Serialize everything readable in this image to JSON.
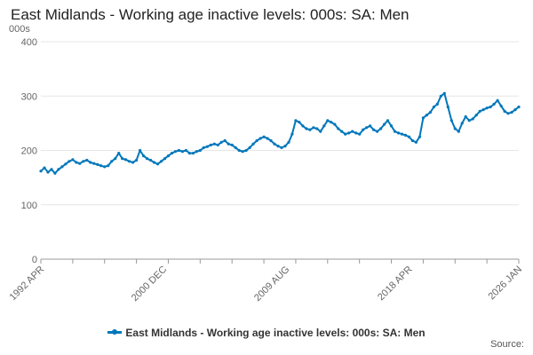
{
  "title": "East Midlands - Working age inactive levels: 000s: SA: Men",
  "source_label": "Source:",
  "colors": {
    "series": "#0077bb",
    "grid": "#e6e6e6",
    "axis": "#999999"
  },
  "chart_data": {
    "type": "line",
    "title": "East Midlands - Working age inactive levels: 000s: SA: Men",
    "ylabel": "000s",
    "ylim": [
      0,
      400
    ],
    "yticks": [
      0,
      100,
      200,
      300,
      400
    ],
    "grid": true,
    "legend_position": "bottom",
    "x_range": [
      "1992 APR",
      "2026 JAN"
    ],
    "xtick_labels": [
      "1992 APR",
      "2000 DEC",
      "2009 AUG",
      "2018 APR",
      "2026 JAN"
    ],
    "series": [
      {
        "name": "East Midlands - Working age inactive levels: 000s: SA: Men",
        "points": [
          [
            "1992 APR",
            162
          ],
          [
            "1992 JUL",
            168
          ],
          [
            "1992 OCT",
            160
          ],
          [
            "1993 JAN",
            165
          ],
          [
            "1993 APR",
            158
          ],
          [
            "1993 JUL",
            165
          ],
          [
            "1993 OCT",
            170
          ],
          [
            "1994 JAN",
            175
          ],
          [
            "1994 APR",
            180
          ],
          [
            "1994 JUL",
            183
          ],
          [
            "1994 OCT",
            178
          ],
          [
            "1995 JAN",
            176
          ],
          [
            "1995 APR",
            180
          ],
          [
            "1995 JUL",
            182
          ],
          [
            "1995 OCT",
            178
          ],
          [
            "1996 JAN",
            176
          ],
          [
            "1996 APR",
            174
          ],
          [
            "1996 JUL",
            172
          ],
          [
            "1996 OCT",
            170
          ],
          [
            "1997 JAN",
            172
          ],
          [
            "1997 APR",
            180
          ],
          [
            "1997 JUL",
            185
          ],
          [
            "1997 OCT",
            195
          ],
          [
            "1998 JAN",
            185
          ],
          [
            "1998 APR",
            183
          ],
          [
            "1998 JUL",
            180
          ],
          [
            "1998 OCT",
            178
          ],
          [
            "1999 JAN",
            182
          ],
          [
            "1999 APR",
            200
          ],
          [
            "1999 JUL",
            190
          ],
          [
            "1999 OCT",
            185
          ],
          [
            "2000 JAN",
            182
          ],
          [
            "2000 APR",
            178
          ],
          [
            "2000 JUL",
            175
          ],
          [
            "2000 OCT",
            180
          ],
          [
            "2001 JAN",
            185
          ],
          [
            "2001 APR",
            190
          ],
          [
            "2001 JUL",
            195
          ],
          [
            "2001 OCT",
            198
          ],
          [
            "2002 JAN",
            200
          ],
          [
            "2002 APR",
            198
          ],
          [
            "2002 JUL",
            200
          ],
          [
            "2002 OCT",
            195
          ],
          [
            "2003 JAN",
            195
          ],
          [
            "2003 APR",
            198
          ],
          [
            "2003 JUL",
            200
          ],
          [
            "2003 OCT",
            205
          ],
          [
            "2004 JAN",
            207
          ],
          [
            "2004 APR",
            210
          ],
          [
            "2004 JUL",
            212
          ],
          [
            "2004 OCT",
            210
          ],
          [
            "2005 JAN",
            215
          ],
          [
            "2005 APR",
            218
          ],
          [
            "2005 JUL",
            212
          ],
          [
            "2005 OCT",
            210
          ],
          [
            "2006 JAN",
            205
          ],
          [
            "2006 APR",
            200
          ],
          [
            "2006 JUL",
            198
          ],
          [
            "2006 OCT",
            200
          ],
          [
            "2007 JAN",
            205
          ],
          [
            "2007 APR",
            212
          ],
          [
            "2007 JUL",
            218
          ],
          [
            "2007 OCT",
            222
          ],
          [
            "2008 JAN",
            225
          ],
          [
            "2008 APR",
            222
          ],
          [
            "2008 JUL",
            218
          ],
          [
            "2008 OCT",
            212
          ],
          [
            "2009 JAN",
            208
          ],
          [
            "2009 APR",
            205
          ],
          [
            "2009 JUL",
            208
          ],
          [
            "2009 OCT",
            215
          ],
          [
            "2010 JAN",
            230
          ],
          [
            "2010 APR",
            255
          ],
          [
            "2010 JUL",
            252
          ],
          [
            "2010 OCT",
            245
          ],
          [
            "2011 JAN",
            240
          ],
          [
            "2011 APR",
            238
          ],
          [
            "2011 JUL",
            242
          ],
          [
            "2011 OCT",
            240
          ],
          [
            "2012 JAN",
            235
          ],
          [
            "2012 APR",
            245
          ],
          [
            "2012 JUL",
            255
          ],
          [
            "2012 OCT",
            252
          ],
          [
            "2013 JAN",
            248
          ],
          [
            "2013 APR",
            240
          ],
          [
            "2013 JUL",
            235
          ],
          [
            "2013 OCT",
            230
          ],
          [
            "2014 JAN",
            232
          ],
          [
            "2014 APR",
            235
          ],
          [
            "2014 JUL",
            232
          ],
          [
            "2014 OCT",
            230
          ],
          [
            "2015 JAN",
            238
          ],
          [
            "2015 APR",
            242
          ],
          [
            "2015 JUL",
            245
          ],
          [
            "2015 OCT",
            238
          ],
          [
            "2016 JAN",
            235
          ],
          [
            "2016 APR",
            240
          ],
          [
            "2016 JUL",
            248
          ],
          [
            "2016 OCT",
            255
          ],
          [
            "2017 JAN",
            245
          ],
          [
            "2017 APR",
            235
          ],
          [
            "2017 JUL",
            232
          ],
          [
            "2017 OCT",
            230
          ],
          [
            "2018 JAN",
            228
          ],
          [
            "2018 APR",
            225
          ],
          [
            "2018 JUL",
            218
          ],
          [
            "2018 OCT",
            215
          ],
          [
            "2019 JAN",
            225
          ],
          [
            "2019 APR",
            260
          ],
          [
            "2019 JUL",
            265
          ],
          [
            "2019 OCT",
            270
          ],
          [
            "2020 JAN",
            280
          ],
          [
            "2020 APR",
            285
          ],
          [
            "2020 JUL",
            300
          ],
          [
            "2020 OCT",
            305
          ],
          [
            "2021 JAN",
            280
          ],
          [
            "2021 APR",
            255
          ],
          [
            "2021 JUL",
            240
          ],
          [
            "2021 OCT",
            235
          ],
          [
            "2022 JAN",
            250
          ],
          [
            "2022 APR",
            262
          ],
          [
            "2022 JUL",
            255
          ],
          [
            "2022 OCT",
            258
          ],
          [
            "2023 JAN",
            265
          ],
          [
            "2023 APR",
            272
          ],
          [
            "2023 JUL",
            275
          ],
          [
            "2023 OCT",
            278
          ],
          [
            "2024 JAN",
            280
          ],
          [
            "2024 APR",
            285
          ],
          [
            "2024 JUL",
            292
          ],
          [
            "2024 OCT",
            282
          ],
          [
            "2025 JAN",
            272
          ],
          [
            "2025 APR",
            268
          ],
          [
            "2025 JUL",
            270
          ],
          [
            "2025 OCT",
            275
          ],
          [
            "2026 JAN",
            280
          ]
        ]
      }
    ]
  }
}
